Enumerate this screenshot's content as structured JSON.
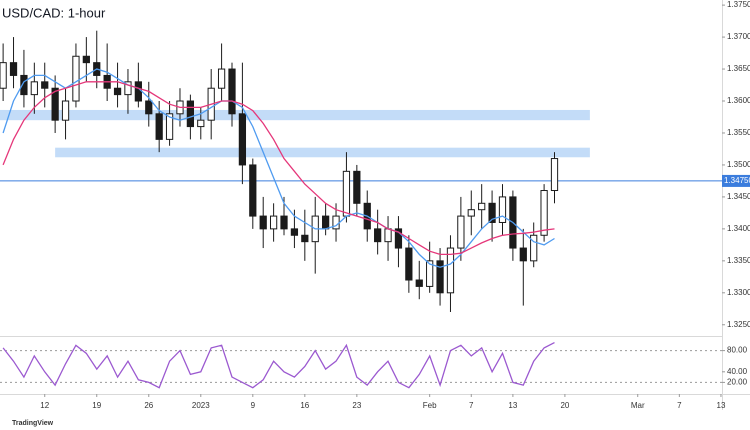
{
  "chart_data": {
    "type": "candlestick",
    "title": "USD/CAD: 1-hour",
    "brand": "TradingView",
    "x": [
      1,
      2,
      3,
      4,
      5,
      6,
      7,
      8,
      9,
      10,
      11,
      12,
      13,
      14,
      15,
      16,
      17,
      18,
      19,
      20,
      21,
      22,
      23,
      24,
      25,
      26,
      27,
      28,
      29,
      30,
      31,
      32,
      33,
      34,
      35,
      36,
      37,
      38,
      39,
      40,
      41,
      42,
      43,
      44,
      45,
      46,
      47,
      48,
      49,
      50,
      51,
      52,
      53,
      54
    ],
    "open": [
      1.362,
      1.366,
      1.364,
      1.361,
      1.363,
      1.362,
      1.357,
      1.36,
      1.367,
      1.366,
      1.364,
      1.362,
      1.361,
      1.363,
      1.36,
      1.358,
      1.354,
      1.358,
      1.36,
      1.356,
      1.357,
      1.362,
      1.365,
      1.358,
      1.35,
      1.342,
      1.34,
      1.342,
      1.34,
      1.339,
      1.338,
      1.342,
      1.34,
      1.342,
      1.349,
      1.344,
      1.34,
      1.338,
      1.34,
      1.337,
      1.332,
      1.331,
      1.335,
      1.33,
      1.337,
      1.342,
      1.343,
      1.344,
      1.341,
      1.345,
      1.337,
      1.335,
      1.339,
      1.346
    ],
    "high": [
      1.369,
      1.37,
      1.368,
      1.366,
      1.366,
      1.364,
      1.362,
      1.369,
      1.37,
      1.371,
      1.369,
      1.366,
      1.365,
      1.366,
      1.363,
      1.36,
      1.36,
      1.362,
      1.361,
      1.359,
      1.365,
      1.369,
      1.366,
      1.366,
      1.351,
      1.345,
      1.344,
      1.345,
      1.343,
      1.343,
      1.345,
      1.344,
      1.344,
      1.352,
      1.35,
      1.346,
      1.343,
      1.342,
      1.342,
      1.339,
      1.335,
      1.338,
      1.337,
      1.339,
      1.345,
      1.346,
      1.347,
      1.346,
      1.347,
      1.346,
      1.34,
      1.341,
      1.347,
      1.352
    ],
    "low": [
      1.36,
      1.362,
      1.359,
      1.358,
      1.359,
      1.355,
      1.354,
      1.359,
      1.363,
      1.362,
      1.36,
      1.359,
      1.358,
      1.359,
      1.356,
      1.352,
      1.353,
      1.356,
      1.354,
      1.354,
      1.354,
      1.36,
      1.356,
      1.347,
      1.34,
      1.337,
      1.338,
      1.339,
      1.337,
      1.335,
      1.333,
      1.339,
      1.338,
      1.341,
      1.342,
      1.338,
      1.336,
      1.335,
      1.334,
      1.33,
      1.329,
      1.33,
      1.328,
      1.327,
      1.335,
      1.339,
      1.34,
      1.338,
      1.339,
      1.335,
      1.328,
      1.334,
      1.338,
      1.344
    ],
    "close": [
      1.366,
      1.364,
      1.361,
      1.363,
      1.362,
      1.357,
      1.36,
      1.367,
      1.366,
      1.364,
      1.362,
      1.361,
      1.363,
      1.36,
      1.358,
      1.354,
      1.358,
      1.36,
      1.356,
      1.357,
      1.362,
      1.365,
      1.358,
      1.35,
      1.342,
      1.34,
      1.342,
      1.34,
      1.339,
      1.338,
      1.342,
      1.34,
      1.342,
      1.349,
      1.344,
      1.34,
      1.338,
      1.34,
      1.337,
      1.332,
      1.331,
      1.335,
      1.33,
      1.337,
      1.342,
      1.343,
      1.344,
      1.341,
      1.345,
      1.337,
      1.335,
      1.339,
      1.346,
      1.351
    ],
    "candle_color": "#1b1b1b",
    "series": [
      {
        "color": "#4f9bf0",
        "values": [
          1.355,
          1.36,
          1.363,
          1.364,
          1.364,
          1.363,
          1.362,
          1.363,
          1.364,
          1.365,
          1.3645,
          1.3635,
          1.3625,
          1.362,
          1.3605,
          1.3585,
          1.3575,
          1.357,
          1.3575,
          1.358,
          1.359,
          1.36,
          1.36,
          1.359,
          1.356,
          1.352,
          1.348,
          1.344,
          1.342,
          1.341,
          1.34,
          1.34,
          1.3405,
          1.342,
          1.3425,
          1.342,
          1.341,
          1.34,
          1.3395,
          1.338,
          1.336,
          1.3345,
          1.334,
          1.3345,
          1.336,
          1.338,
          1.34,
          1.3415,
          1.342,
          1.341,
          1.3395,
          1.338,
          1.3375,
          1.3385
        ]
      },
      {
        "color": "#e5377a",
        "values": [
          1.35,
          1.354,
          1.357,
          1.359,
          1.3605,
          1.3615,
          1.362,
          1.3625,
          1.363,
          1.363,
          1.363,
          1.363,
          1.3625,
          1.362,
          1.3615,
          1.3605,
          1.3595,
          1.359,
          1.359,
          1.359,
          1.3595,
          1.36,
          1.36,
          1.3595,
          1.3585,
          1.3565,
          1.354,
          1.351,
          1.349,
          1.347,
          1.3455,
          1.344,
          1.343,
          1.3425,
          1.342,
          1.3415,
          1.341,
          1.34,
          1.3395,
          1.3385,
          1.3375,
          1.3365,
          1.336,
          1.336,
          1.3362,
          1.337,
          1.3378,
          1.3385,
          1.339,
          1.3392,
          1.3393,
          1.3395,
          1.3398,
          1.34
        ]
      },
      {
        "color": "#9b59d0",
        "axis": "y2",
        "values": [
          85,
          60,
          30,
          70,
          40,
          15,
          55,
          90,
          75,
          45,
          70,
          30,
          60,
          25,
          20,
          10,
          60,
          80,
          35,
          40,
          85,
          90,
          30,
          20,
          10,
          25,
          60,
          40,
          30,
          50,
          80,
          45,
          60,
          90,
          30,
          15,
          40,
          60,
          20,
          10,
          35,
          70,
          15,
          80,
          90,
          70,
          85,
          40,
          75,
          20,
          15,
          60,
          85,
          95
        ]
      }
    ],
    "zones": [
      {
        "low": 1.357,
        "high": 1.3586,
        "start": 0.7,
        "end": 57.4,
        "color": "#bcd8f7"
      },
      {
        "low": 1.3512,
        "high": 1.3527,
        "start": 6,
        "end": 57.4,
        "color": "#bcd8f7"
      }
    ],
    "hline": {
      "value": 1.3475,
      "label": "1.34750",
      "color": "#3b7ddd"
    },
    "xlim": [
      0.7,
      70.1
    ],
    "xticks": [
      {
        "value": 5,
        "label": "12"
      },
      {
        "value": 10,
        "label": "19"
      },
      {
        "value": 15,
        "label": "26"
      },
      {
        "value": 20,
        "label": "2023"
      },
      {
        "value": 25,
        "label": "9"
      },
      {
        "value": 30,
        "label": "16"
      },
      {
        "value": 35,
        "label": "23"
      },
      {
        "value": 42,
        "label": "Feb"
      },
      {
        "value": 46,
        "label": "7"
      },
      {
        "value": 50,
        "label": "13"
      },
      {
        "value": 55,
        "label": "20"
      },
      {
        "value": 62,
        "label": "Mar"
      },
      {
        "value": 66,
        "label": "7"
      },
      {
        "value": 70,
        "label": "13"
      }
    ],
    "ylim": [
      1.3234,
      1.3758
    ],
    "yticks": [
      {
        "value": 1.325,
        "label": "1.32500"
      },
      {
        "value": 1.33,
        "label": "1.33000"
      },
      {
        "value": 1.335,
        "label": "1.33500"
      },
      {
        "value": 1.34,
        "label": "1.34000"
      },
      {
        "value": 1.345,
        "label": "1.34500"
      },
      {
        "value": 1.35,
        "label": "1.35000"
      },
      {
        "value": 1.355,
        "label": "1.35500"
      },
      {
        "value": 1.36,
        "label": "1.36000"
      },
      {
        "value": 1.365,
        "label": "1.36500"
      },
      {
        "value": 1.37,
        "label": "1.37000"
      },
      {
        "value": 1.375,
        "label": "1.37500"
      }
    ],
    "y2lim": [
      0,
      100
    ],
    "y2ticks": [
      {
        "value": 80,
        "label": "80.00"
      },
      {
        "value": 40,
        "label": "40.00"
      },
      {
        "value": 20,
        "label": "20.00"
      }
    ],
    "y2_dashed": [
      80,
      20
    ]
  }
}
